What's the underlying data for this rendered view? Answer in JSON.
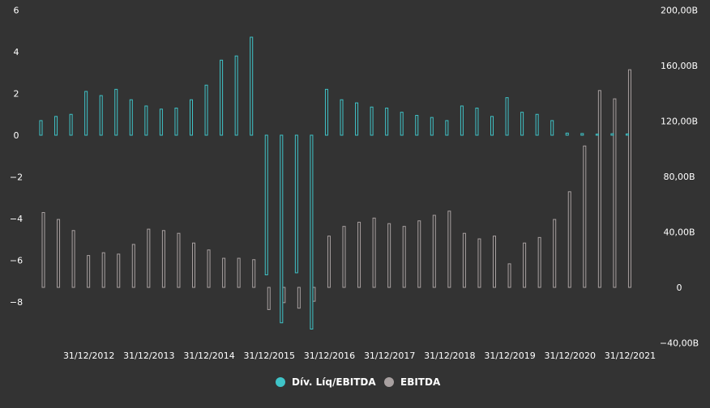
{
  "colors": {
    "background": "#333333",
    "ratio_series": "#3fc4c8",
    "ebitda_series": "#a8a0a0",
    "bar_fill": "#333333",
    "text": "#ffffff"
  },
  "chart_data": {
    "type": "bar",
    "title": "",
    "xlabel": "",
    "ylabel_left": "",
    "ylabel_right": "",
    "ylim_left": [
      -10,
      6
    ],
    "ylim_right": [
      -40,
      200
    ],
    "yticks_left": [
      6,
      4,
      2,
      0,
      -2,
      -4,
      -6,
      -8
    ],
    "yticks_left_labels": [
      "6",
      "4",
      "2",
      "0",
      "−2",
      "−4",
      "−6",
      "−8"
    ],
    "yticks_right": [
      200,
      160,
      120,
      80,
      40,
      0,
      -40
    ],
    "yticks_right_labels": [
      "200,00B",
      "160,00B",
      "120,00B",
      "80,00B",
      "40,00B",
      "0",
      "−40,00B"
    ],
    "xtick_labels": [
      "31/12/2012",
      "31/12/2013",
      "31/12/2014",
      "31/12/2015",
      "31/12/2016",
      "31/12/2017",
      "31/12/2018",
      "31/12/2019",
      "31/12/2020",
      "31/12/2021"
    ],
    "xtick_positions": [
      3,
      7,
      11,
      15,
      19,
      23,
      27,
      31,
      35,
      39
    ],
    "legend_position": "bottom-center",
    "periods": 40,
    "series": [
      {
        "name": "Dív. Líq/EBITDA",
        "axis": "left",
        "color": "#3fc4c8",
        "values": [
          0.7,
          0.9,
          1.0,
          2.1,
          1.9,
          2.2,
          1.7,
          1.4,
          1.25,
          1.3,
          1.7,
          2.4,
          3.6,
          3.8,
          4.7,
          -6.7,
          -9.0,
          -6.6,
          -9.3,
          2.2,
          1.7,
          1.55,
          1.35,
          1.3,
          1.1,
          0.95,
          0.85,
          0.7,
          1.4,
          1.3,
          0.9,
          1.8,
          1.1,
          1.0,
          0.7,
          0.1,
          0.08,
          0.05,
          0.07,
          0.06
        ]
      },
      {
        "name": "EBITDA",
        "axis": "right",
        "color": "#a8a0a0",
        "values": [
          54,
          49,
          41,
          23,
          25,
          24,
          31,
          42,
          41,
          39,
          32,
          27,
          21,
          21,
          20,
          -16,
          -11,
          -15,
          -10,
          37,
          44,
          47,
          50,
          46,
          44,
          48,
          52,
          55,
          39,
          35,
          37,
          17,
          32,
          36,
          49,
          69,
          102,
          142,
          136,
          157
        ]
      }
    ]
  }
}
